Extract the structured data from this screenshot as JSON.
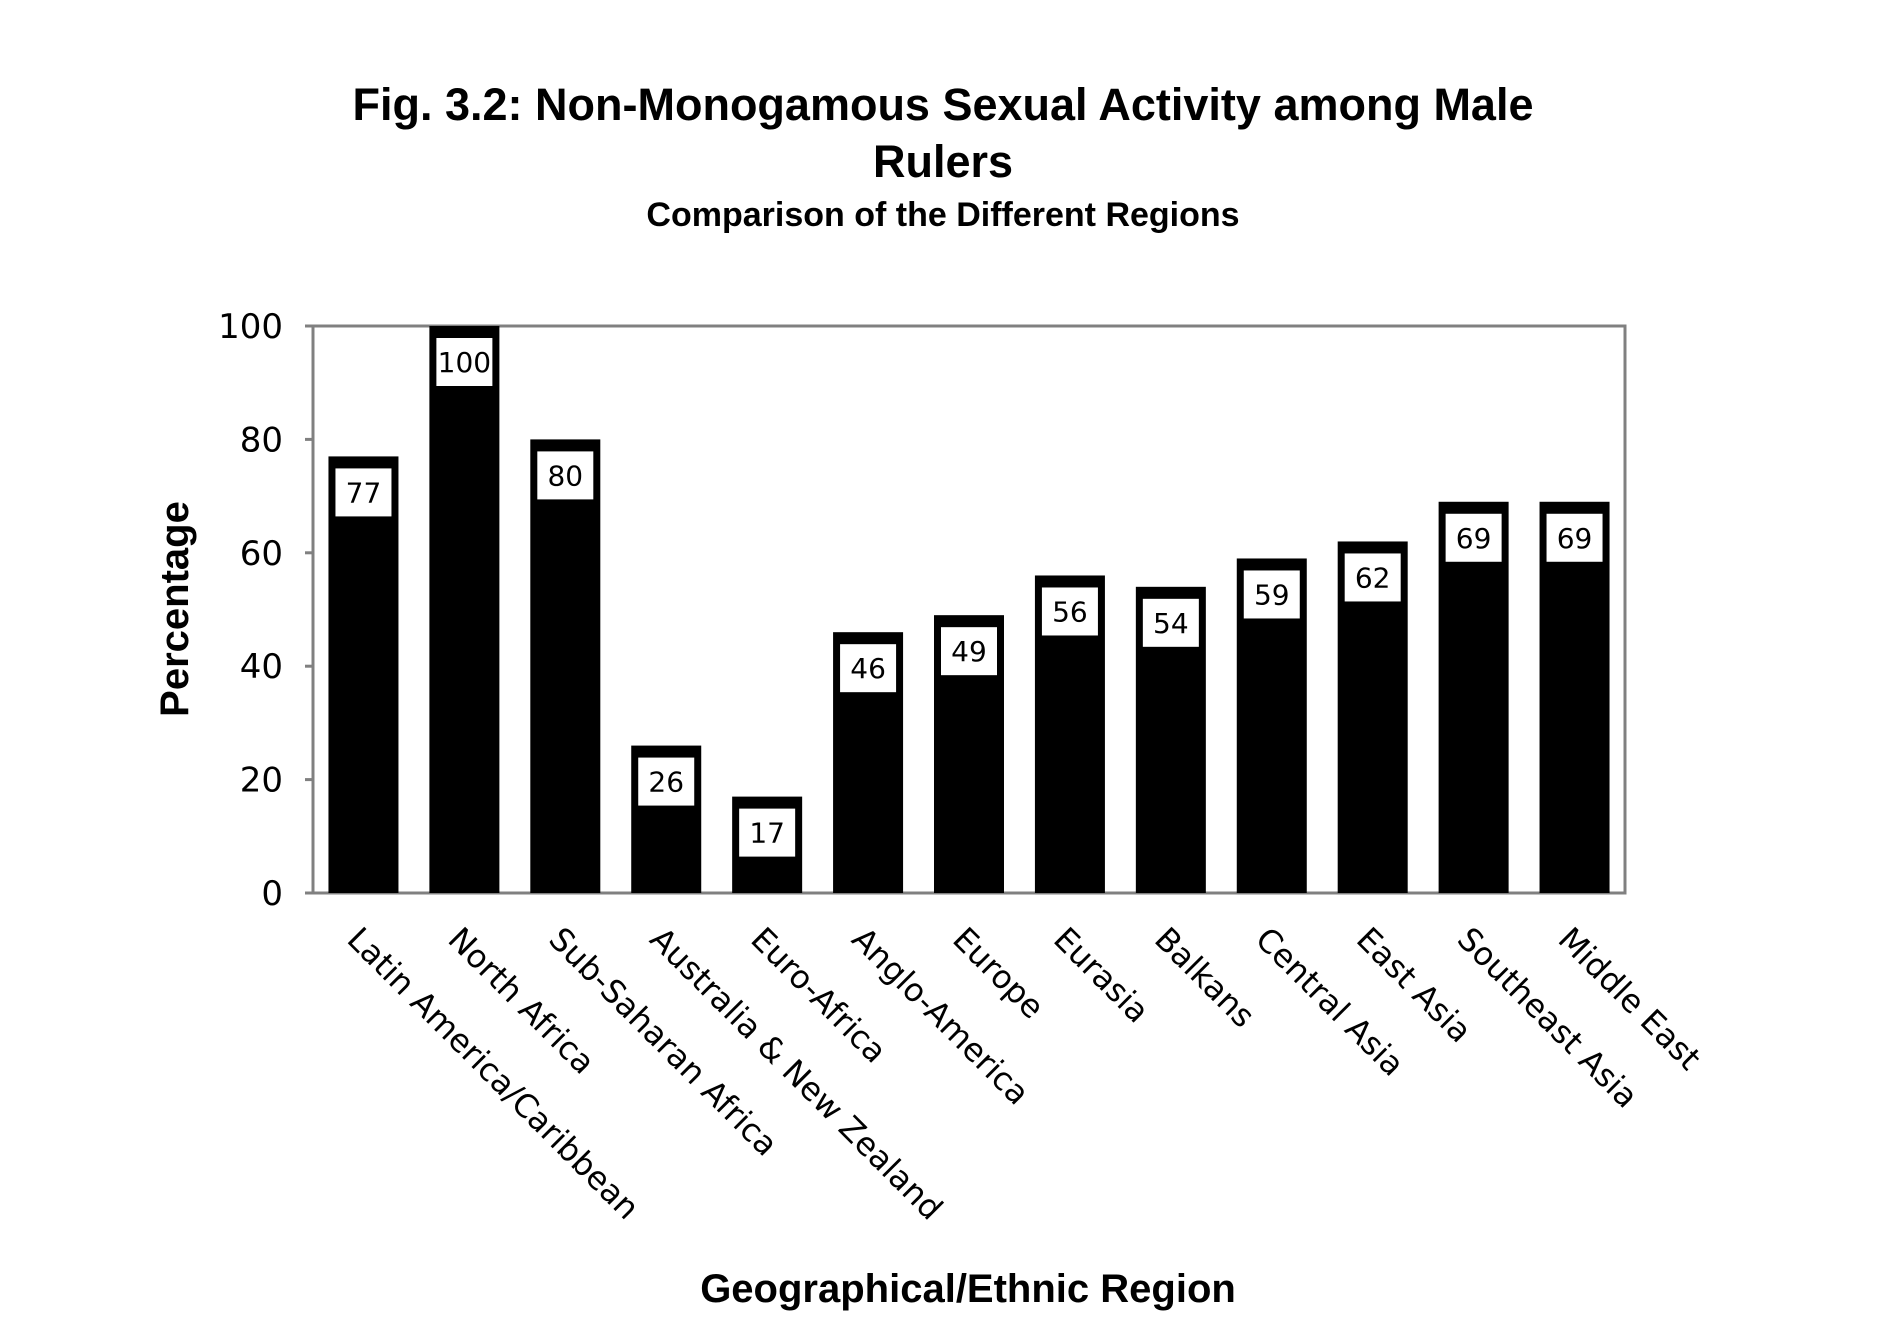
{
  "chart_data": {
    "type": "bar",
    "title": "Fig. 3.2: Non-Monogamous Sexual Activity among Male Rulers",
    "title_lines": [
      "Fig. 3.2: Non-Monogamous Sexual Activity among Male",
      "Rulers"
    ],
    "subtitle": "Comparison of the Different Regions",
    "xlabel": "Geographical/Ethnic Region",
    "ylabel": "Percentage",
    "ylim": [
      0,
      100
    ],
    "yticks": [
      0,
      20,
      40,
      60,
      80,
      100
    ],
    "grid": false,
    "legend": "none",
    "data_labels": true,
    "categories": [
      "Latin America/Caribbean",
      "North Africa",
      "Sub-Saharan Africa",
      "Australia & New Zealand",
      "Euro-Africa",
      "Anglo-America",
      "Europe",
      "Eurasia",
      "Balkans",
      "Central Asia",
      "East Asia",
      "Southeast Asia",
      "Middle East"
    ],
    "values": [
      77,
      100,
      80,
      26,
      17,
      46,
      49,
      56,
      54,
      59,
      62,
      69,
      69
    ],
    "colors": {
      "bar": "#000000",
      "label_box": "#ffffff",
      "frame": "#808080"
    }
  }
}
